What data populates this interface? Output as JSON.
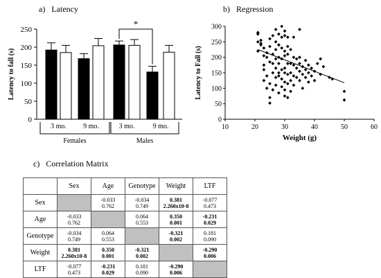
{
  "panels": {
    "a": {
      "letter": "a)",
      "title": "Latency"
    },
    "b": {
      "letter": "b)",
      "title": "Regression"
    },
    "c": {
      "letter": "c)",
      "title": "Correlation Matrix"
    }
  },
  "chart_data": [
    {
      "type": "bar",
      "panel": "a",
      "ylabel": "Latency to fall (s)",
      "ylim": [
        0,
        250
      ],
      "yticks": [
        0,
        50,
        100,
        150,
        200,
        250
      ],
      "significance_marker": "*",
      "groups": [
        {
          "label": "Females",
          "sublabels": [
            "3 mo.",
            "9 mo."
          ]
        },
        {
          "label": "Males",
          "sublabels": [
            "3 mo.",
            "9 mo."
          ]
        }
      ],
      "bars": [
        {
          "group": "Females",
          "age": "3 mo.",
          "fill": "#000000",
          "value": 192,
          "error": 20
        },
        {
          "group": "Females",
          "age": "3 mo.",
          "fill": "#ffffff",
          "value": 185,
          "error": 20
        },
        {
          "group": "Females",
          "age": "9 mo.",
          "fill": "#000000",
          "value": 168,
          "error": 14
        },
        {
          "group": "Females",
          "age": "9 mo.",
          "fill": "#ffffff",
          "value": 204,
          "error": 20
        },
        {
          "group": "Males",
          "age": "3 mo.",
          "fill": "#000000",
          "value": 206,
          "error": 11
        },
        {
          "group": "Males",
          "age": "3 mo.",
          "fill": "#ffffff",
          "value": 205,
          "error": 16
        },
        {
          "group": "Males",
          "age": "9 mo.",
          "fill": "#000000",
          "value": 131,
          "error": 16
        },
        {
          "group": "Males",
          "age": "9 mo.",
          "fill": "#ffffff",
          "value": 186,
          "error": 19
        }
      ]
    },
    {
      "type": "scatter",
      "panel": "b",
      "xlabel": "Weight (g)",
      "ylabel": "Latency to Fall (s)",
      "xlim": [
        10,
        60
      ],
      "ylim": [
        0,
        300
      ],
      "xticks": [
        10,
        20,
        30,
        40,
        50,
        60
      ],
      "yticks": [
        0,
        50,
        100,
        150,
        200,
        250,
        300
      ],
      "trendline": {
        "x": [
          21,
          50
        ],
        "y": [
          225,
          118
        ]
      },
      "points": [
        [
          21,
          250
        ],
        [
          21,
          275
        ],
        [
          21,
          280
        ],
        [
          21,
          220
        ],
        [
          22,
          255
        ],
        [
          22,
          240
        ],
        [
          22,
          245
        ],
        [
          23,
          230
        ],
        [
          23,
          205
        ],
        [
          23,
          175
        ],
        [
          23,
          160
        ],
        [
          23,
          125
        ],
        [
          24,
          215
        ],
        [
          24,
          200
        ],
        [
          24,
          140
        ],
        [
          24,
          100
        ],
        [
          25,
          260
        ],
        [
          25,
          235
        ],
        [
          25,
          185
        ],
        [
          25,
          115
        ],
        [
          25,
          52
        ],
        [
          25,
          70
        ],
        [
          26,
          270
        ],
        [
          26,
          210
        ],
        [
          26,
          180
        ],
        [
          26,
          150
        ],
        [
          26,
          95
        ],
        [
          27,
          290
        ],
        [
          27,
          250
        ],
        [
          27,
          225
        ],
        [
          27,
          195
        ],
        [
          27,
          165
        ],
        [
          27,
          135
        ],
        [
          27,
          110
        ],
        [
          28,
          275
        ],
        [
          28,
          240
        ],
        [
          28,
          200
        ],
        [
          28,
          180
        ],
        [
          28,
          150
        ],
        [
          28,
          140
        ],
        [
          28,
          85
        ],
        [
          28,
          240
        ],
        [
          29,
          300
        ],
        [
          29,
          265
        ],
        [
          29,
          230
        ],
        [
          29,
          195
        ],
        [
          29,
          160
        ],
        [
          29,
          130
        ],
        [
          29,
          105
        ],
        [
          30,
          285
        ],
        [
          30,
          270
        ],
        [
          30,
          220
        ],
        [
          30,
          205
        ],
        [
          30,
          165
        ],
        [
          30,
          150
        ],
        [
          30,
          120
        ],
        [
          30,
          95
        ],
        [
          30,
          75
        ],
        [
          31,
          265
        ],
        [
          31,
          235
        ],
        [
          31,
          210
        ],
        [
          31,
          180
        ],
        [
          31,
          145
        ],
        [
          31,
          115
        ],
        [
          31,
          70
        ],
        [
          32,
          225
        ],
        [
          32,
          180
        ],
        [
          32,
          150
        ],
        [
          32,
          125
        ],
        [
          32,
          90
        ],
        [
          33,
          265
        ],
        [
          33,
          200
        ],
        [
          33,
          175
        ],
        [
          33,
          140
        ],
        [
          33,
          110
        ],
        [
          34,
          195
        ],
        [
          34,
          165
        ],
        [
          34,
          135
        ],
        [
          35,
          290
        ],
        [
          35,
          200
        ],
        [
          35,
          180
        ],
        [
          35,
          155
        ],
        [
          35,
          125
        ],
        [
          36,
          170
        ],
        [
          36,
          145
        ],
        [
          36,
          100
        ],
        [
          37,
          190
        ],
        [
          37,
          160
        ],
        [
          37,
          135
        ],
        [
          38,
          175
        ],
        [
          38,
          150
        ],
        [
          38,
          120
        ],
        [
          39,
          165
        ],
        [
          39,
          140
        ],
        [
          40,
          155
        ],
        [
          40,
          125
        ],
        [
          41,
          180
        ],
        [
          42,
          195
        ],
        [
          42,
          145
        ],
        [
          43,
          170
        ],
        [
          45,
          135
        ],
        [
          46,
          130
        ],
        [
          50,
          90
        ],
        [
          50,
          62
        ]
      ]
    }
  ],
  "table": {
    "headers": [
      "Sex",
      "Age",
      "Genotype",
      "Weight",
      "LTF"
    ],
    "rows": [
      {
        "label": "Sex",
        "cells": [
          null,
          [
            "-0.033",
            "0.762"
          ],
          [
            "-0.034",
            "0.749"
          ],
          [
            "0.381",
            "2.260x10-8"
          ],
          [
            "-0.077",
            "0.473"
          ]
        ],
        "bold": [
          false,
          false,
          false,
          true,
          false
        ]
      },
      {
        "label": "Age",
        "cells": [
          [
            "-0.033",
            "0.762"
          ],
          null,
          [
            "0.064",
            "0.553"
          ],
          [
            "0.350",
            "0.001"
          ],
          [
            "-0.231",
            "0.029"
          ]
        ],
        "bold": [
          false,
          false,
          false,
          true,
          true
        ]
      },
      {
        "label": "Genotype",
        "cells": [
          [
            "-0.034",
            "0.749"
          ],
          [
            "0.064",
            "0.553"
          ],
          null,
          [
            "-0.321",
            "0.002"
          ],
          [
            "0.181",
            "0.090"
          ]
        ],
        "bold": [
          false,
          false,
          false,
          true,
          false
        ]
      },
      {
        "label": "Weight",
        "cells": [
          [
            "0.381",
            "2.260x10-8"
          ],
          [
            "0.350",
            "0.001"
          ],
          [
            "-0.321",
            "0.002"
          ],
          null,
          [
            "-0.290",
            "0.006"
          ]
        ],
        "bold": [
          true,
          true,
          true,
          false,
          true
        ]
      },
      {
        "label": "LTF",
        "cells": [
          [
            "-0.077",
            "0.473"
          ],
          [
            "-0.231",
            "0.029"
          ],
          [
            "0.181",
            "0.090"
          ],
          [
            "-0.290",
            "0.006"
          ],
          null
        ],
        "bold": [
          false,
          true,
          false,
          true,
          false
        ]
      }
    ]
  }
}
